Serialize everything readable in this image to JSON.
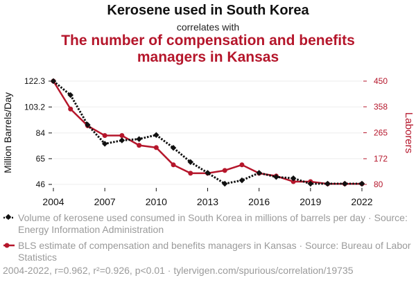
{
  "header": {
    "title": "Kerosene used in South Korea",
    "connector": "correlates with",
    "title2": "The number of compensation and benefits managers in Kansas"
  },
  "colors": {
    "series1": "#111111",
    "series2": "#b5162b",
    "grid": "#eeeeee",
    "muted": "#9a9a9a"
  },
  "chart_data": {
    "type": "line",
    "x": [
      2004,
      2005,
      2006,
      2007,
      2008,
      2009,
      2010,
      2011,
      2012,
      2013,
      2014,
      2015,
      2016,
      2017,
      2018,
      2019,
      2020,
      2021,
      2022
    ],
    "x_ticks": [
      "2004",
      "2007",
      "2010",
      "2013",
      "2016",
      "2019",
      "2022"
    ],
    "ylabel_left": "Million Barrels/Day",
    "ylabel_right": "Laborers",
    "left_ticks": [
      "122.3",
      "103.2",
      "84",
      "65",
      "46"
    ],
    "left_tick_values": [
      122.3,
      103.2,
      84,
      65,
      46
    ],
    "right_ticks": [
      "450",
      "358",
      "265",
      "172",
      "80"
    ],
    "right_tick_values": [
      450,
      358,
      265,
      172,
      80
    ],
    "left_range": [
      46,
      122.3
    ],
    "right_range": [
      80,
      450
    ],
    "series": [
      {
        "name": "Volume of kerosene used consumed in South Korea in millions of barrels per day",
        "axis": "left",
        "style": "dotted-diamond",
        "values": [
          122.3,
          112,
          90,
          76,
          78.5,
          79.5,
          82.5,
          73,
          62.5,
          54.5,
          46.5,
          49,
          54.5,
          51.5,
          50.5,
          46.5,
          46.5,
          46.5,
          46.5
        ]
      },
      {
        "name": "BLS estimate of compensation and benefits managers in Kansas",
        "axis": "right",
        "style": "solid-dot",
        "values": [
          450,
          350,
          290,
          255,
          255,
          220,
          212,
          150,
          120,
          120,
          130,
          150,
          120,
          110,
          90,
          90,
          82,
          82,
          82
        ]
      }
    ]
  },
  "legend": {
    "item1": "Volume of kerosene used consumed in South Korea in millions of barrels per day · Source: Energy Information Administration",
    "item2": "BLS estimate of compensation and benefits managers in Kansas · Source: Bureau of Labor Statistics"
  },
  "footer": "2004-2022, r=0.962, r²=0.926, p<0.01 · tylervigen.com/spurious/correlation/19735"
}
